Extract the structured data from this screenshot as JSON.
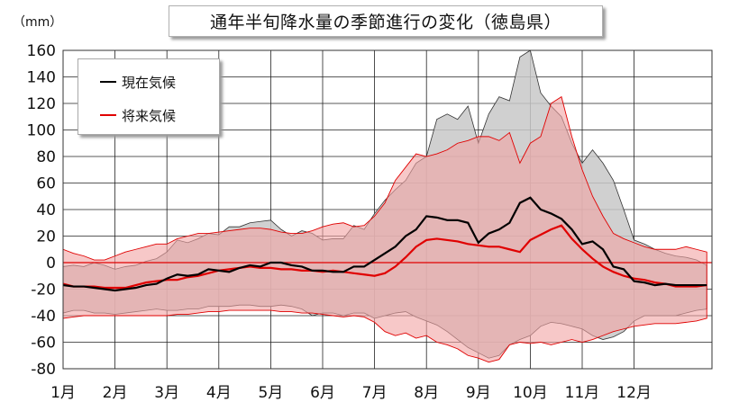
{
  "chart_data": {
    "type": "line",
    "title": "通年半旬降水量の季節進行の変化（徳島県）",
    "y_unit": "（mm）",
    "ylim": [
      -80,
      160
    ],
    "y_ticks": [
      160,
      140,
      120,
      100,
      80,
      60,
      40,
      20,
      0,
      -20,
      -40,
      -60,
      -80
    ],
    "x_range": [
      0,
      12.5
    ],
    "x_ticks": [
      "1月",
      "2月",
      "3月",
      "4月",
      "5月",
      "6月",
      "7月",
      "8月",
      "9月",
      "10月",
      "11月",
      "12月"
    ],
    "grid": true,
    "legend_position": "top-left",
    "colors": {
      "current": "#000000",
      "future": "#e00000",
      "current_band": "#c8c8c8",
      "future_band": "#f2a3a3",
      "zero_line": "#e00000"
    },
    "series": [
      {
        "name": "現在気候",
        "x": [
          0,
          0.2,
          0.4,
          0.6,
          0.8,
          1.0,
          1.2,
          1.4,
          1.6,
          1.8,
          2.0,
          2.2,
          2.4,
          2.6,
          2.8,
          3.0,
          3.2,
          3.4,
          3.6,
          3.8,
          4.0,
          4.2,
          4.4,
          4.6,
          4.8,
          5.0,
          5.2,
          5.4,
          5.6,
          5.8,
          6.0,
          6.2,
          6.4,
          6.6,
          6.8,
          7.0,
          7.2,
          7.4,
          7.6,
          7.8,
          8.0,
          8.2,
          8.4,
          8.6,
          8.8,
          9.0,
          9.2,
          9.4,
          9.6,
          9.8,
          10.0,
          10.2,
          10.4,
          10.6,
          10.8,
          11.0,
          11.2,
          11.4,
          11.6,
          11.8,
          12.0,
          12.2,
          12.4
        ],
        "values": [
          -17,
          -18,
          -18,
          -19,
          -20,
          -21,
          -20,
          -19,
          -17,
          -16,
          -12,
          -9,
          -10,
          -9,
          -5,
          -6,
          -7,
          -4,
          -2,
          -3,
          0,
          0,
          -2,
          -3,
          -6,
          -6,
          -7,
          -7,
          -3,
          -3,
          2,
          7,
          12,
          20,
          25,
          35,
          34,
          32,
          32,
          30,
          15,
          22,
          25,
          30,
          45,
          49,
          40,
          37,
          33,
          25,
          14,
          16,
          10,
          -3,
          -5,
          -14,
          -15,
          -17,
          -16,
          -17,
          -17,
          -17,
          -17
        ],
        "band_upper": [
          -3,
          -2,
          -3,
          0,
          -2,
          -5,
          -3,
          -2,
          1,
          3,
          8,
          17,
          15,
          18,
          22,
          21,
          27,
          27,
          30,
          31,
          32,
          25,
          20,
          24,
          22,
          17,
          18,
          18,
          28,
          25,
          37,
          47,
          55,
          62,
          75,
          80,
          108,
          112,
          108,
          118,
          90,
          112,
          125,
          122,
          155,
          160,
          128,
          118,
          110,
          90,
          75,
          85,
          75,
          62,
          40,
          17,
          14,
          10,
          7,
          5,
          4,
          2,
          -2
        ],
        "band_lower": [
          -38,
          -36,
          -36,
          -38,
          -38,
          -39,
          -38,
          -37,
          -36,
          -35,
          -36,
          -36,
          -35,
          -35,
          -33,
          -33,
          -33,
          -32,
          -32,
          -33,
          -33,
          -32,
          -33,
          -35,
          -40,
          -38,
          -38,
          -40,
          -38,
          -38,
          -42,
          -40,
          -38,
          -37,
          -41,
          -44,
          -47,
          -52,
          -58,
          -64,
          -68,
          -72,
          -70,
          -62,
          -58,
          -55,
          -48,
          -45,
          -46,
          -48,
          -50,
          -55,
          -58,
          -56,
          -52,
          -44,
          -40,
          -40,
          -40,
          -40,
          -38,
          -36,
          -35
        ]
      },
      {
        "name": "将来気候",
        "x": [
          0,
          0.2,
          0.4,
          0.6,
          0.8,
          1.0,
          1.2,
          1.4,
          1.6,
          1.8,
          2.0,
          2.2,
          2.4,
          2.6,
          2.8,
          3.0,
          3.2,
          3.4,
          3.6,
          3.8,
          4.0,
          4.2,
          4.4,
          4.6,
          4.8,
          5.0,
          5.2,
          5.4,
          5.6,
          5.8,
          6.0,
          6.2,
          6.4,
          6.6,
          6.8,
          7.0,
          7.2,
          7.4,
          7.6,
          7.8,
          8.0,
          8.2,
          8.4,
          8.6,
          8.8,
          9.0,
          9.2,
          9.4,
          9.6,
          9.8,
          10.0,
          10.2,
          10.4,
          10.6,
          10.8,
          11.0,
          11.2,
          11.4,
          11.6,
          11.8,
          12.0,
          12.2,
          12.4
        ],
        "values": [
          -16,
          -18,
          -18,
          -18,
          -19,
          -19,
          -19,
          -17,
          -15,
          -14,
          -13,
          -13,
          -11,
          -10,
          -8,
          -6,
          -5,
          -4,
          -3,
          -4,
          -4,
          -5,
          -5,
          -6,
          -6,
          -7,
          -6,
          -7,
          -8,
          -9,
          -10,
          -8,
          -3,
          4,
          12,
          17,
          18,
          17,
          16,
          14,
          13,
          12,
          12,
          10,
          8,
          17,
          21,
          25,
          28,
          18,
          10,
          3,
          -3,
          -7,
          -10,
          -12,
          -13,
          -15,
          -16,
          -18,
          -18,
          -18,
          -17
        ],
        "band_upper": [
          10,
          7,
          5,
          2,
          2,
          5,
          8,
          10,
          12,
          14,
          14,
          18,
          20,
          22,
          22,
          23,
          24,
          25,
          26,
          26,
          25,
          23,
          22,
          22,
          24,
          27,
          29,
          30,
          27,
          28,
          35,
          45,
          62,
          72,
          82,
          80,
          82,
          85,
          90,
          92,
          95,
          95,
          92,
          98,
          75,
          90,
          95,
          120,
          125,
          95,
          70,
          50,
          35,
          22,
          18,
          15,
          12,
          10,
          10,
          10,
          12,
          10,
          8
        ],
        "band_lower": [
          -42,
          -41,
          -40,
          -40,
          -40,
          -40,
          -40,
          -40,
          -40,
          -40,
          -40,
          -39,
          -39,
          -38,
          -37,
          -37,
          -36,
          -36,
          -36,
          -36,
          -36,
          -37,
          -37,
          -38,
          -38,
          -39,
          -40,
          -41,
          -40,
          -41,
          -45,
          -52,
          -55,
          -53,
          -57,
          -55,
          -60,
          -62,
          -65,
          -70,
          -72,
          -75,
          -73,
          -62,
          -60,
          -61,
          -60,
          -62,
          -60,
          -58,
          -60,
          -58,
          -55,
          -52,
          -50,
          -48,
          -47,
          -46,
          -46,
          -46,
          -45,
          -44,
          -42
        ]
      }
    ]
  }
}
